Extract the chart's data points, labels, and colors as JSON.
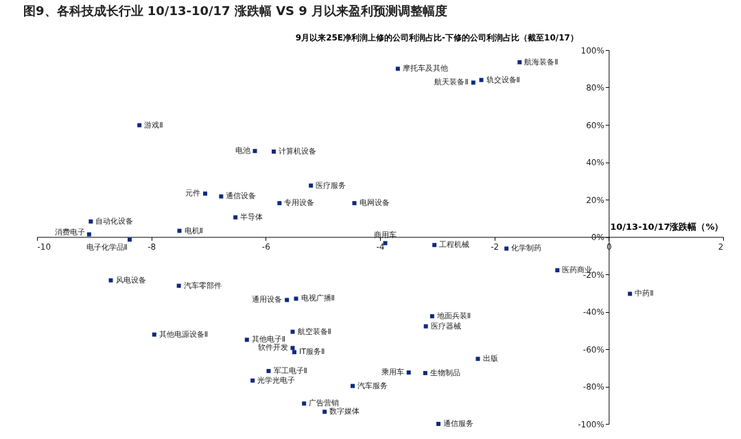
{
  "chart_data": {
    "type": "scatter",
    "title": "图9、各科技成长行业 10/13-10/17 涨跌幅  VS 9 月以来盈利预测调整幅度",
    "xlabel": "10/13-10/17涨跌幅（%）",
    "ylabel": "9月以来25E净利润上修的公司利润占比-下修的公司利润占比（截至10/17）",
    "marker": "square",
    "grid": false,
    "xlim": [
      -10,
      2
    ],
    "xticks": [
      -10,
      -8,
      -6,
      -4,
      -2,
      0,
      2
    ],
    "ylim": [
      -100,
      100
    ],
    "yticks": [
      {
        "value": -100,
        "label": "-100%"
      },
      {
        "value": -80,
        "label": "-80%"
      },
      {
        "value": -60,
        "label": "-60%"
      },
      {
        "value": -40,
        "label": "-40%"
      },
      {
        "value": -20,
        "label": "-20%"
      },
      {
        "value": 0,
        "label": "0%"
      },
      {
        "value": 20,
        "label": "20%"
      },
      {
        "value": 40,
        "label": "40%"
      },
      {
        "value": 60,
        "label": "60%"
      },
      {
        "value": 80,
        "label": "80%"
      },
      {
        "value": 100,
        "label": "100%"
      }
    ],
    "x": [
      -3.69,
      -1.56,
      -2.23,
      -2.37,
      -8.21,
      -6.19,
      -5.86,
      -5.21,
      -7.06,
      -6.78,
      -5.76,
      -4.45,
      -9.06,
      -6.53,
      -7.51,
      -9.09,
      -8.38,
      -3.91,
      -3.05,
      -1.79,
      -0.9,
      0.37,
      -8.71,
      -7.52,
      -5.63,
      -5.47,
      -3.09,
      -3.2,
      -7.95,
      -6.33,
      -5.53,
      -5.53,
      -5.5,
      -2.29,
      -5.95,
      -3.5,
      -3.21,
      -6.23,
      -4.48,
      -5.33,
      -4.97,
      -2.98
    ],
    "series": [
      {
        "color": "#0d2a80",
        "values": [
          90,
          93.5,
          84,
          82.6,
          59.8,
          46,
          45.7,
          27.5,
          23.2,
          21.7,
          18.1,
          18.1,
          8.3,
          10.5,
          3.3,
          1.4,
          -1.4,
          -3.3,
          -4.3,
          -6.2,
          -17.8,
          -30.4,
          -23.2,
          -26.1,
          -33.7,
          -33,
          -42.4,
          -47.8,
          -52.2,
          -55,
          -50.7,
          -59.4,
          -61.6,
          -65.2,
          -71.7,
          -72.5,
          -72.8,
          -76.8,
          -79.7,
          -89.1,
          -93.5,
          -100
        ]
      }
    ],
    "annotations": [
      {
        "text": "摩托车及其他",
        "x": -3.69,
        "y": 90
      },
      {
        "text": "航海装备Ⅱ",
        "x": -1.56,
        "y": 93.5
      },
      {
        "text": "轨交设备Ⅱ",
        "x": -2.23,
        "y": 84
      },
      {
        "text": "航天装备Ⅱ",
        "x": -2.37,
        "y": 82.6
      },
      {
        "text": "游戏Ⅱ",
        "x": -8.21,
        "y": 59.8
      },
      {
        "text": "电池",
        "x": -6.19,
        "y": 46
      },
      {
        "text": "计算机设备",
        "x": -5.86,
        "y": 45.7
      },
      {
        "text": "医疗服务",
        "x": -5.21,
        "y": 27.5
      },
      {
        "text": "元件",
        "x": -7.06,
        "y": 23.2
      },
      {
        "text": "通信设备",
        "x": -6.78,
        "y": 21.7
      },
      {
        "text": "专用设备",
        "x": -5.76,
        "y": 18.1
      },
      {
        "text": "电网设备",
        "x": -4.45,
        "y": 18.1
      },
      {
        "text": "自动化设备",
        "x": -9.06,
        "y": 8.3
      },
      {
        "text": "半导体",
        "x": -6.53,
        "y": 10.5
      },
      {
        "text": "电机Ⅱ",
        "x": -7.51,
        "y": 3.3
      },
      {
        "text": "消费电子",
        "x": -9.09,
        "y": 1.4
      },
      {
        "text": "电子化学品Ⅱ",
        "x": -8.38,
        "y": -1.4
      },
      {
        "text": "商用车",
        "x": -3.91,
        "y": -3.3
      },
      {
        "text": "工程机械",
        "x": -3.05,
        "y": -4.3
      },
      {
        "text": "化学制药",
        "x": -1.79,
        "y": -6.2
      },
      {
        "text": "医药商业",
        "x": -0.9,
        "y": -17.8
      },
      {
        "text": "中药Ⅱ",
        "x": 0.37,
        "y": -30.4
      },
      {
        "text": "风电设备",
        "x": -8.71,
        "y": -23.2
      },
      {
        "text": "汽车零部件",
        "x": -7.52,
        "y": -26.1
      },
      {
        "text": "通用设备",
        "x": -5.63,
        "y": -33.7
      },
      {
        "text": "电视广播Ⅱ",
        "x": -5.47,
        "y": -33
      },
      {
        "text": "地面兵装Ⅱ",
        "x": -3.09,
        "y": -42.4
      },
      {
        "text": "医疗器械",
        "x": -3.2,
        "y": -47.8
      },
      {
        "text": "其他电源设备Ⅱ",
        "x": -7.95,
        "y": -52.2
      },
      {
        "text": "其他电子Ⅱ",
        "x": -6.33,
        "y": -55
      },
      {
        "text": "航空装备Ⅱ",
        "x": -5.53,
        "y": -50.7
      },
      {
        "text": "软件开发",
        "x": -5.53,
        "y": -59.4
      },
      {
        "text": "IT服务Ⅱ",
        "x": -5.5,
        "y": -61.6
      },
      {
        "text": "出版",
        "x": -2.29,
        "y": -65.2
      },
      {
        "text": "军工电子Ⅱ",
        "x": -5.95,
        "y": -71.7
      },
      {
        "text": "乘用车",
        "x": -3.5,
        "y": -72.5
      },
      {
        "text": "生物制品",
        "x": -3.21,
        "y": -72.8
      },
      {
        "text": "光学光电子",
        "x": -6.23,
        "y": -76.8
      },
      {
        "text": "汽车服务",
        "x": -4.48,
        "y": -79.7
      },
      {
        "text": "广告营销",
        "x": -5.33,
        "y": -89.1
      },
      {
        "text": "数字媒体",
        "x": -4.97,
        "y": -93.5
      },
      {
        "text": "通信服务",
        "x": -2.98,
        "y": -100
      }
    ]
  }
}
